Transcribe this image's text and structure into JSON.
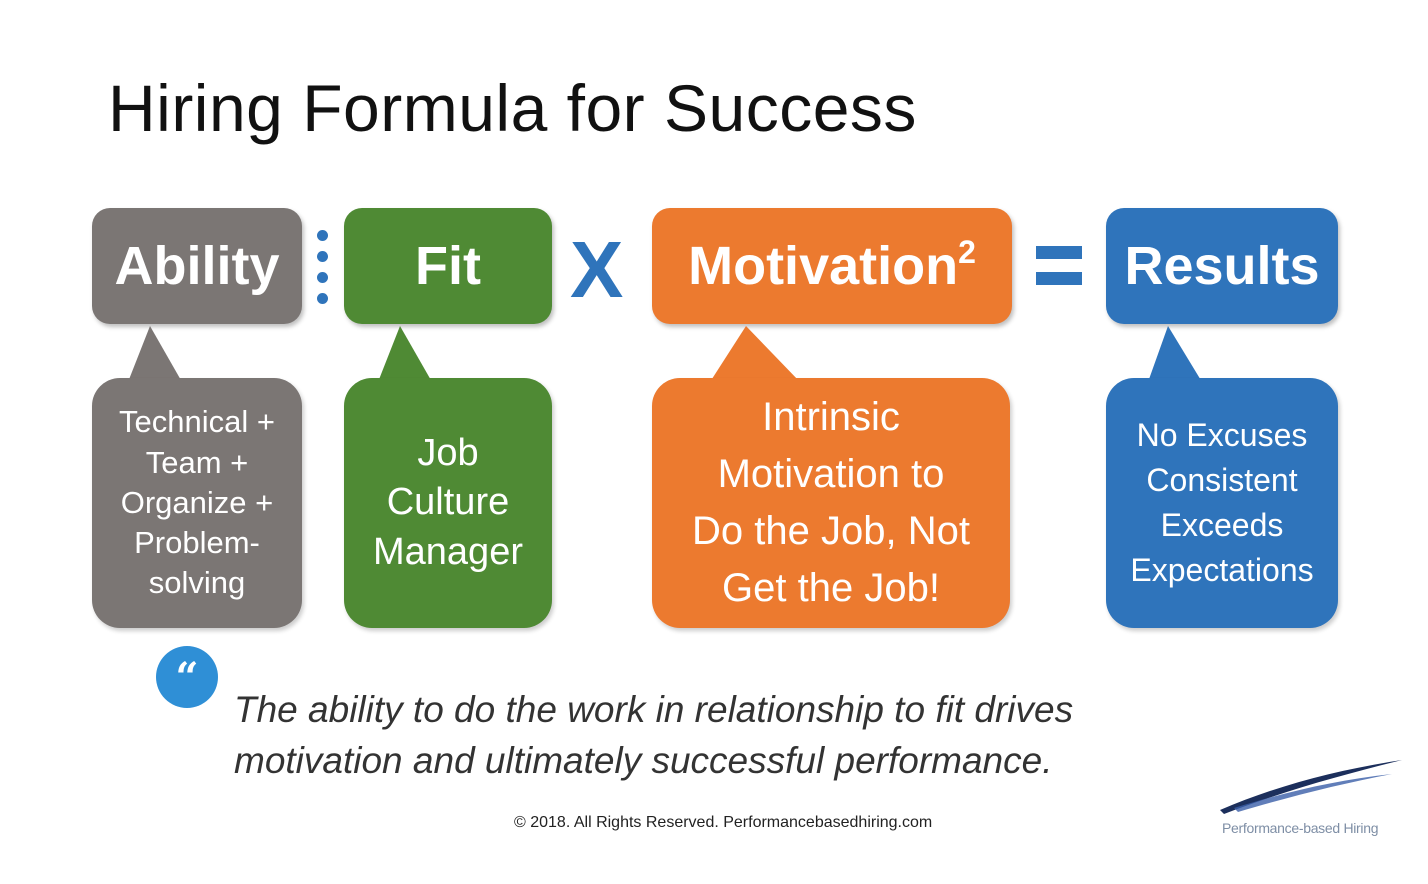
{
  "title": "Hiring Formula for Success",
  "formula": {
    "ability": {
      "label": "Ability",
      "detail": [
        "Technical +",
        "Team +",
        "Organize +",
        "Problem-",
        "solving"
      ]
    },
    "fit": {
      "label": "Fit",
      "detail": [
        "Job",
        "Culture",
        "Manager"
      ]
    },
    "motivation": {
      "label": "Motivation",
      "exponent": "2",
      "detail": [
        "Intrinsic",
        "Motivation to",
        "Do the Job, Not",
        "Get the Job!"
      ]
    },
    "results": {
      "label": "Results",
      "detail": [
        "No Excuses",
        "Consistent",
        "Exceeds",
        "Expectations"
      ]
    },
    "operators": {
      "divide": "colon-dots",
      "multiply": "X",
      "equals": "equals-bars"
    }
  },
  "quote": {
    "icon": "quote-icon",
    "mark": "“",
    "lines": [
      "The ability to do the work in relationship to fit drives",
      "motivation and ultimately successful performance."
    ]
  },
  "footer": {
    "copyright": "© 2018. All Rights Reserved. Performancebasedhiring.com",
    "logo_text": "Performance-based Hiring"
  },
  "colors": {
    "ability": "#7b7674",
    "fit": "#4f8a34",
    "motivation": "#ec7a2f",
    "results": "#2f74bb",
    "operator": "#2f74bb"
  }
}
